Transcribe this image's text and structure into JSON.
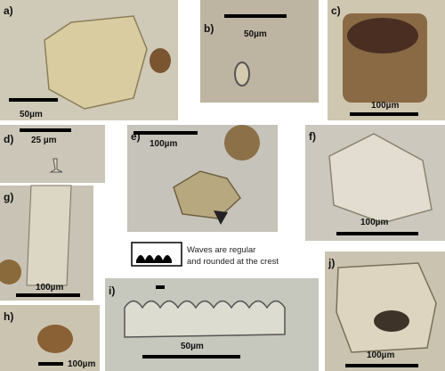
{
  "panels": [
    {
      "label": "a)",
      "scale_label": "50µm"
    },
    {
      "label": "b)",
      "scale_label": "50µm"
    },
    {
      "label": "c)",
      "scale_label": "100µm"
    },
    {
      "label": "d)",
      "scale_label": "25 µm"
    },
    {
      "label": "e)",
      "scale_label": "100µm"
    },
    {
      "label": "f)",
      "scale_label": "100µm"
    },
    {
      "label": "g)",
      "scale_label": "100µm"
    },
    {
      "label": "h)",
      "scale_label": "100µm"
    },
    {
      "label": "i)",
      "scale_label": "50µm"
    },
    {
      "label": "j)",
      "scale_label": "100µm"
    }
  ],
  "legend": {
    "lines": [
      "Waves are regular",
      "and rounded at the crest"
    ]
  }
}
